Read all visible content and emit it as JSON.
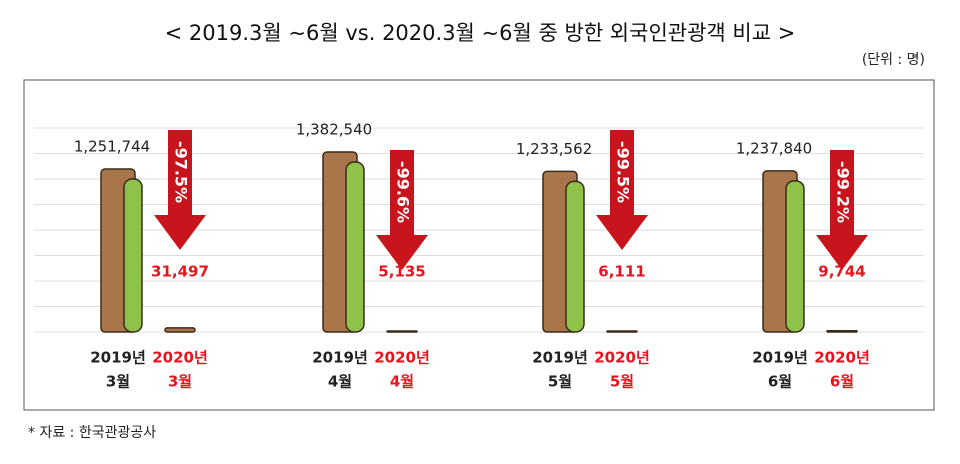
{
  "chart_data": {
    "type": "bar",
    "title": "< 2019.3월 ∼6월 vs. 2020.3월 ∼6월 중 방한 외국인관광객 비교 >",
    "unit": "(단위 : 명)",
    "source": "* 자료 : 한국관광공사",
    "categories": [
      "3월",
      "4월",
      "5월",
      "6월"
    ],
    "series": [
      {
        "name": "2019년",
        "color": "#a8764a",
        "values": [
          1251744,
          1382540,
          1233562,
          1237840
        ],
        "value_labels": [
          "1,251,744",
          "1,382,540",
          "1,233,562",
          "1,237,840"
        ],
        "label_color": "#222"
      },
      {
        "name": "2020년",
        "color": "#a8764a",
        "values": [
          31497,
          5135,
          6111,
          9744
        ],
        "value_labels": [
          "31,497",
          "5,135",
          "6,111",
          "9,744"
        ],
        "label_color": "#e8141c"
      }
    ],
    "changes": [
      "-97.5%",
      "-99.6%",
      "-99.5%",
      "-99.2%"
    ],
    "arrow_color": "#c8141c",
    "grid": true
  }
}
